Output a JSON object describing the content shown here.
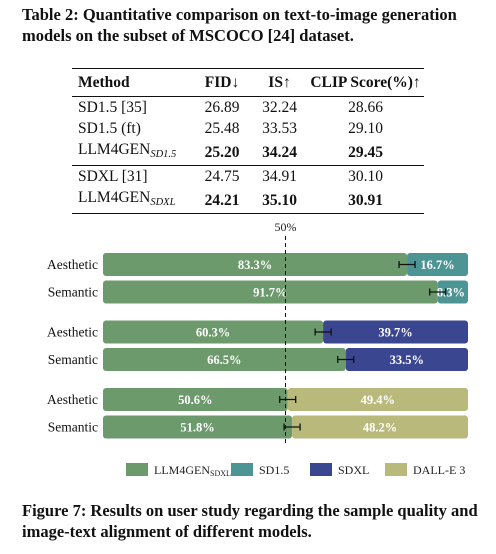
{
  "table_caption": "Table 2: Quantitative comparison on text-to-image generation models on the subset of MSCOCO [24] dataset.",
  "table": {
    "headers": [
      "Method",
      "FID↓",
      "IS↑",
      "CLIP Score(%)↑"
    ],
    "groups": [
      [
        {
          "method": "SD1.5 [35]",
          "sub": "",
          "fid": "26.89",
          "is": "32.24",
          "clip": "28.66",
          "bold": false
        },
        {
          "method": "SD1.5 (ft)",
          "sub": "",
          "fid": "25.48",
          "is": "33.53",
          "clip": "29.10",
          "bold": false
        },
        {
          "method": "LLM4GEN",
          "sub": "SD1.5",
          "fid": "25.20",
          "is": "34.24",
          "clip": "29.45",
          "bold": true
        }
      ],
      [
        {
          "method": "SDXL [31]",
          "sub": "",
          "fid": "24.75",
          "is": "34.91",
          "clip": "30.10",
          "bold": false
        },
        {
          "method": "LLM4GEN",
          "sub": "SDXL",
          "fid": "24.21",
          "is": "35.10",
          "clip": "30.91",
          "bold": true
        }
      ]
    ]
  },
  "figure_caption": "Figure 7: Results on user study regarding the sample quality and image-text alignment of different models.",
  "chart_data": {
    "type": "bar",
    "orientation": "horizontal",
    "stacked": true,
    "reference_line": {
      "value": 50,
      "label": "50%"
    },
    "xlim": [
      0,
      100
    ],
    "groups": [
      {
        "rows": [
          {
            "label": "Aesthetic",
            "left": {
              "series": "LLM4GEN_SDXL",
              "value": 83.3,
              "text": "83.3%"
            },
            "right": {
              "series": "SD1.5",
              "value": 16.7,
              "text": "16.7%"
            }
          },
          {
            "label": "Semantic",
            "left": {
              "series": "LLM4GEN_SDXL",
              "value": 91.7,
              "text": "91.7%"
            },
            "right": {
              "series": "SD1.5",
              "value": 8.3,
              "text": "8.3%"
            }
          }
        ]
      },
      {
        "rows": [
          {
            "label": "Aesthetic",
            "left": {
              "series": "LLM4GEN_SDXL",
              "value": 60.3,
              "text": "60.3%"
            },
            "right": {
              "series": "SDXL",
              "value": 39.7,
              "text": "39.7%"
            }
          },
          {
            "label": "Semantic",
            "left": {
              "series": "LLM4GEN_SDXL",
              "value": 66.5,
              "text": "66.5%"
            },
            "right": {
              "series": "SDXL",
              "value": 33.5,
              "text": "33.5%"
            }
          }
        ]
      },
      {
        "rows": [
          {
            "label": "Aesthetic",
            "left": {
              "series": "LLM4GEN_SDXL",
              "value": 50.6,
              "text": "50.6%"
            },
            "right": {
              "series": "DALL-E 3",
              "value": 49.4,
              "text": "49.4%"
            }
          },
          {
            "label": "Semantic",
            "left": {
              "series": "LLM4GEN_SDXL",
              "value": 51.8,
              "text": "51.8%"
            },
            "right": {
              "series": "DALL-E 3",
              "value": 48.2,
              "text": "48.2%"
            }
          }
        ]
      }
    ],
    "legend": [
      {
        "key": "LLM4GEN_SDXL",
        "label": "LLM4GEN",
        "sub": "SDXL",
        "color": "#6d9a6d"
      },
      {
        "key": "SD1.5",
        "label": "SD1.5",
        "sub": "",
        "color": "#4d9494"
      },
      {
        "key": "SDXL",
        "label": "SDXL",
        "sub": "",
        "color": "#3b4690"
      },
      {
        "key": "DALL-E 3",
        "label": "DALL-E 3",
        "sub": "",
        "color": "#b9b97c"
      }
    ],
    "legend_position": "bottom",
    "error_bars": true
  }
}
